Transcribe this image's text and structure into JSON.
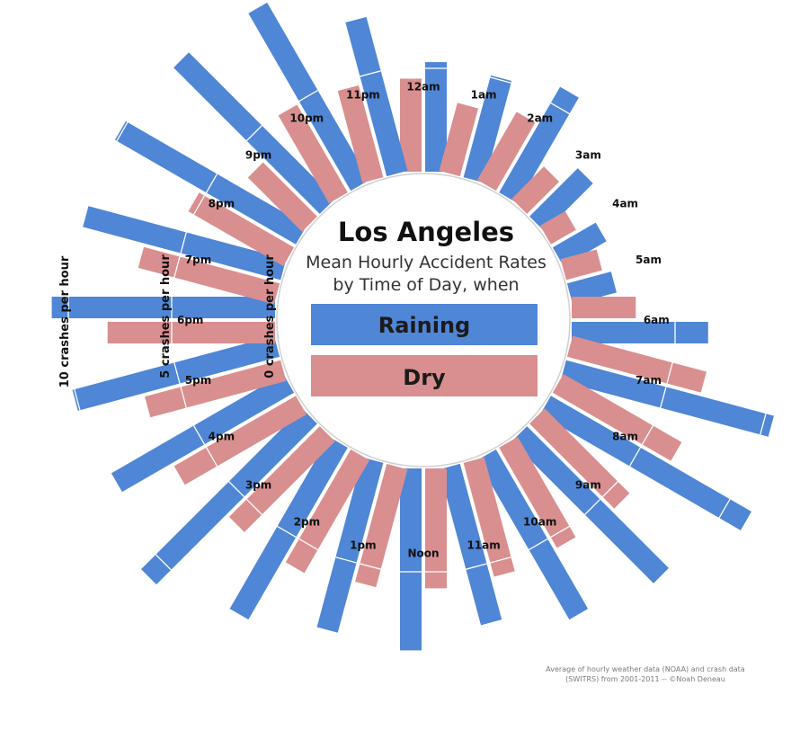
{
  "chart_data": {
    "type": "radial-bar",
    "title": "Los Angeles",
    "subtitle_line1": "Mean Hourly Accident Rates",
    "subtitle_line2": "by Time of Day, when",
    "unit": "crashes per hour",
    "legend": [
      {
        "name": "Raining",
        "color": "#4f86d6"
      },
      {
        "name": "Dry",
        "color": "#d98f8f"
      }
    ],
    "scale_labels": [
      "0 crashes per hour",
      "5 crashes per hour",
      "10 crashes per hour"
    ],
    "scale_values": [
      0,
      5,
      10
    ],
    "categories": [
      "12am",
      "1am",
      "2am",
      "3am",
      "4am",
      "5am",
      "6am",
      "7am",
      "8am",
      "9am",
      "10am",
      "11am",
      "Noon",
      "1pm",
      "2pm",
      "3pm",
      "4pm",
      "5pm",
      "6pm",
      "7pm",
      "8pm",
      "9pm",
      "10pm",
      "11pm"
    ],
    "series": [
      {
        "name": "Raining",
        "color": "#4f86d6",
        "values": [
          5.3,
          5.1,
          5.9,
          3.3,
          2.4,
          2.2,
          6.6,
          10.4,
          11.2,
          9.7,
          8.9,
          7.8,
          8.8,
          8.5,
          9.6,
          11.0,
          9.6,
          10.1,
          10.8,
          9.9,
          10.1,
          10.0,
          9.9,
          7.7
        ]
      },
      {
        "name": "Dry",
        "color": "#d98f8f",
        "values": [
          4.5,
          3.4,
          3.8,
          2.2,
          1.4,
          1.8,
          3.1,
          6.7,
          6.6,
          5.8,
          5.6,
          5.7,
          5.8,
          5.9,
          6.3,
          6.2,
          6.8,
          6.8,
          8.1,
          6.8,
          5.3,
          3.7,
          4.9,
          4.6
        ]
      }
    ]
  },
  "credit_line1": "Average of hourly weather data (NOAA) and crash data",
  "credit_line2": "(SWITRS) from 2001-2011 -- ©Noah Deneau"
}
